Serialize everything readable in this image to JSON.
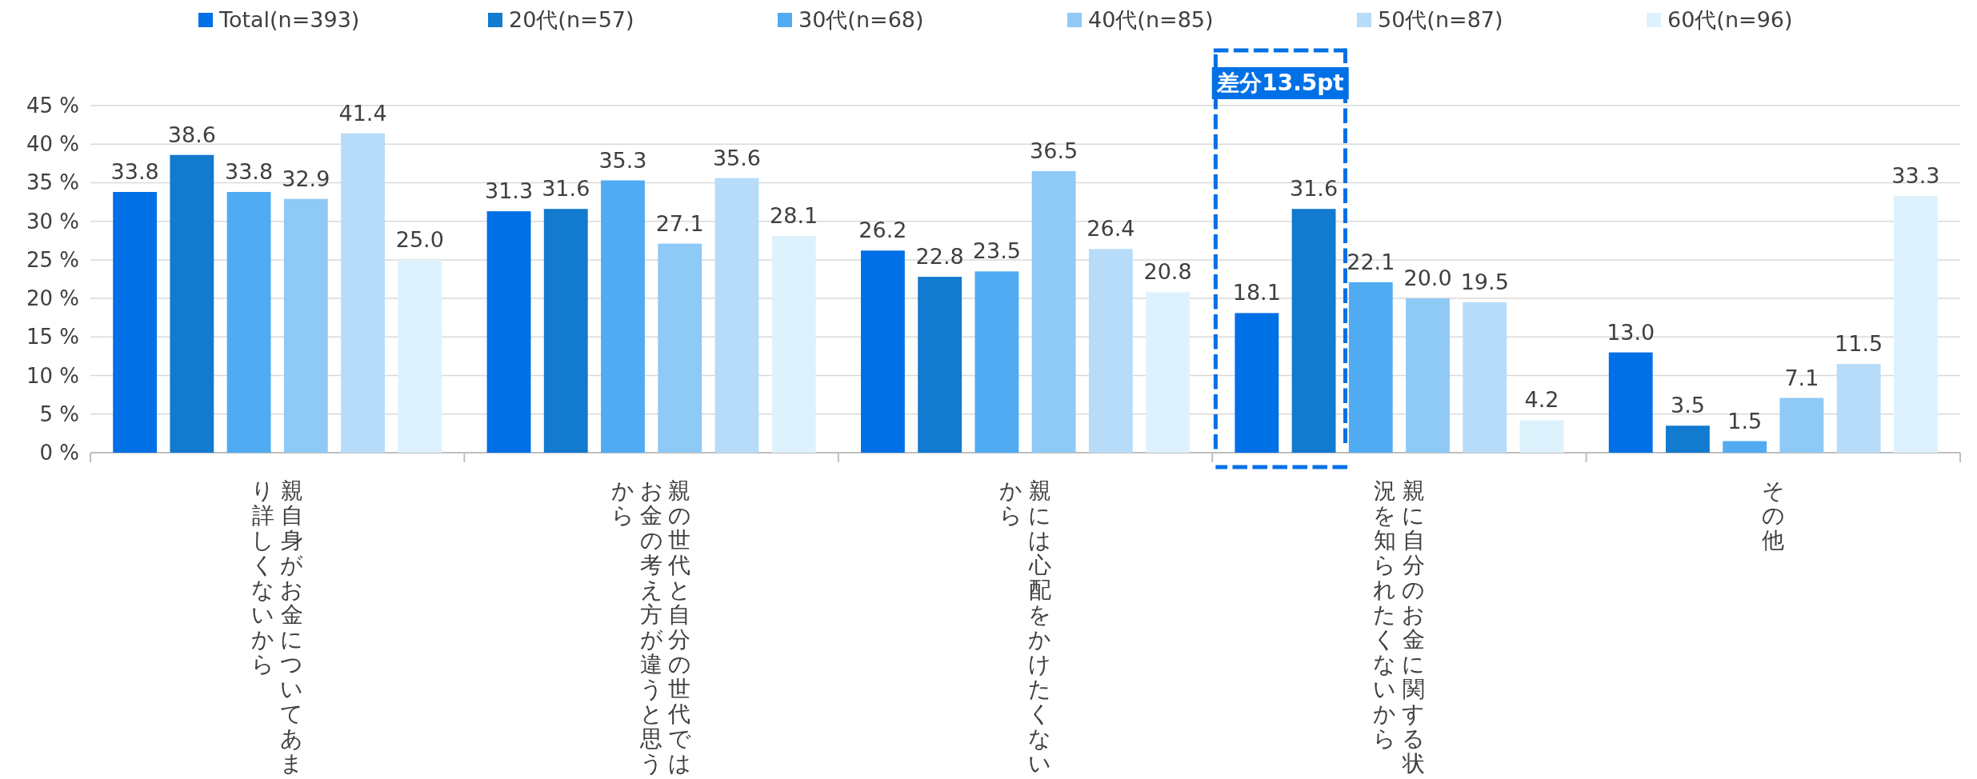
{
  "chart_data": {
    "type": "bar",
    "categories": [
      "親自身がお金についてあまり詳しくないから",
      "親の世代と自分の世代ではお金の考え方が違うと思うから",
      "親には心配をかけたくないから",
      "親に自分のお金に関する状況を知られたくないから",
      "その他"
    ],
    "series": [
      {
        "name": "Total(n=393)",
        "color": "#0070e6",
        "values": [
          33.8,
          31.3,
          26.2,
          18.1,
          13.0
        ],
        "value_labels": [
          "33.8",
          "31.3",
          "26.2",
          "18.1",
          "13.0"
        ]
      },
      {
        "name": "20代(n=57)",
        "color": "#127acf",
        "values": [
          38.6,
          31.6,
          22.8,
          31.6,
          3.5
        ],
        "value_labels": [
          "38.6",
          "31.6",
          "22.8",
          "31.6",
          "3.5"
        ]
      },
      {
        "name": "30代(n=68)",
        "color": "#50abf2",
        "values": [
          33.8,
          35.3,
          23.5,
          22.1,
          1.5
        ],
        "value_labels": [
          "33.8",
          "35.3",
          "23.5",
          "22.1",
          "1.5"
        ]
      },
      {
        "name": "40代(n=85)",
        "color": "#8fc9f6",
        "values": [
          32.9,
          27.1,
          36.5,
          20.0,
          7.1
        ],
        "value_labels": [
          "32.9",
          "27.1",
          "36.5",
          "20.0",
          "7.1"
        ]
      },
      {
        "name": "50代(n=87)",
        "color": "#b7dcf9",
        "values": [
          41.4,
          35.6,
          26.4,
          19.5,
          11.5
        ],
        "value_labels": [
          "41.4",
          "35.6",
          "26.4",
          "19.5",
          "11.5"
        ]
      },
      {
        "name": "60代(n=96)",
        "color": "#ddf2fc",
        "values": [
          25.0,
          28.1,
          20.8,
          4.2,
          33.3
        ],
        "value_labels": [
          "25.0",
          "28.1",
          "20.8",
          "4.2",
          "33.3"
        ]
      }
    ],
    "ylim": [
      0,
      45
    ],
    "yticks": [
      {
        "value": 0,
        "label": "0 %"
      },
      {
        "value": 5,
        "label": "5 %"
      },
      {
        "value": 10,
        "label": "10 %"
      },
      {
        "value": 15,
        "label": "15 %"
      },
      {
        "value": 20,
        "label": "20 %"
      },
      {
        "value": 25,
        "label": "25 %"
      },
      {
        "value": 30,
        "label": "30 %"
      },
      {
        "value": 35,
        "label": "35 %"
      },
      {
        "value": 40,
        "label": "40 %"
      },
      {
        "value": 45,
        "label": "45 %"
      }
    ],
    "grid": "y",
    "legend": "top",
    "annotations": [
      "差分13.5pt"
    ]
  }
}
